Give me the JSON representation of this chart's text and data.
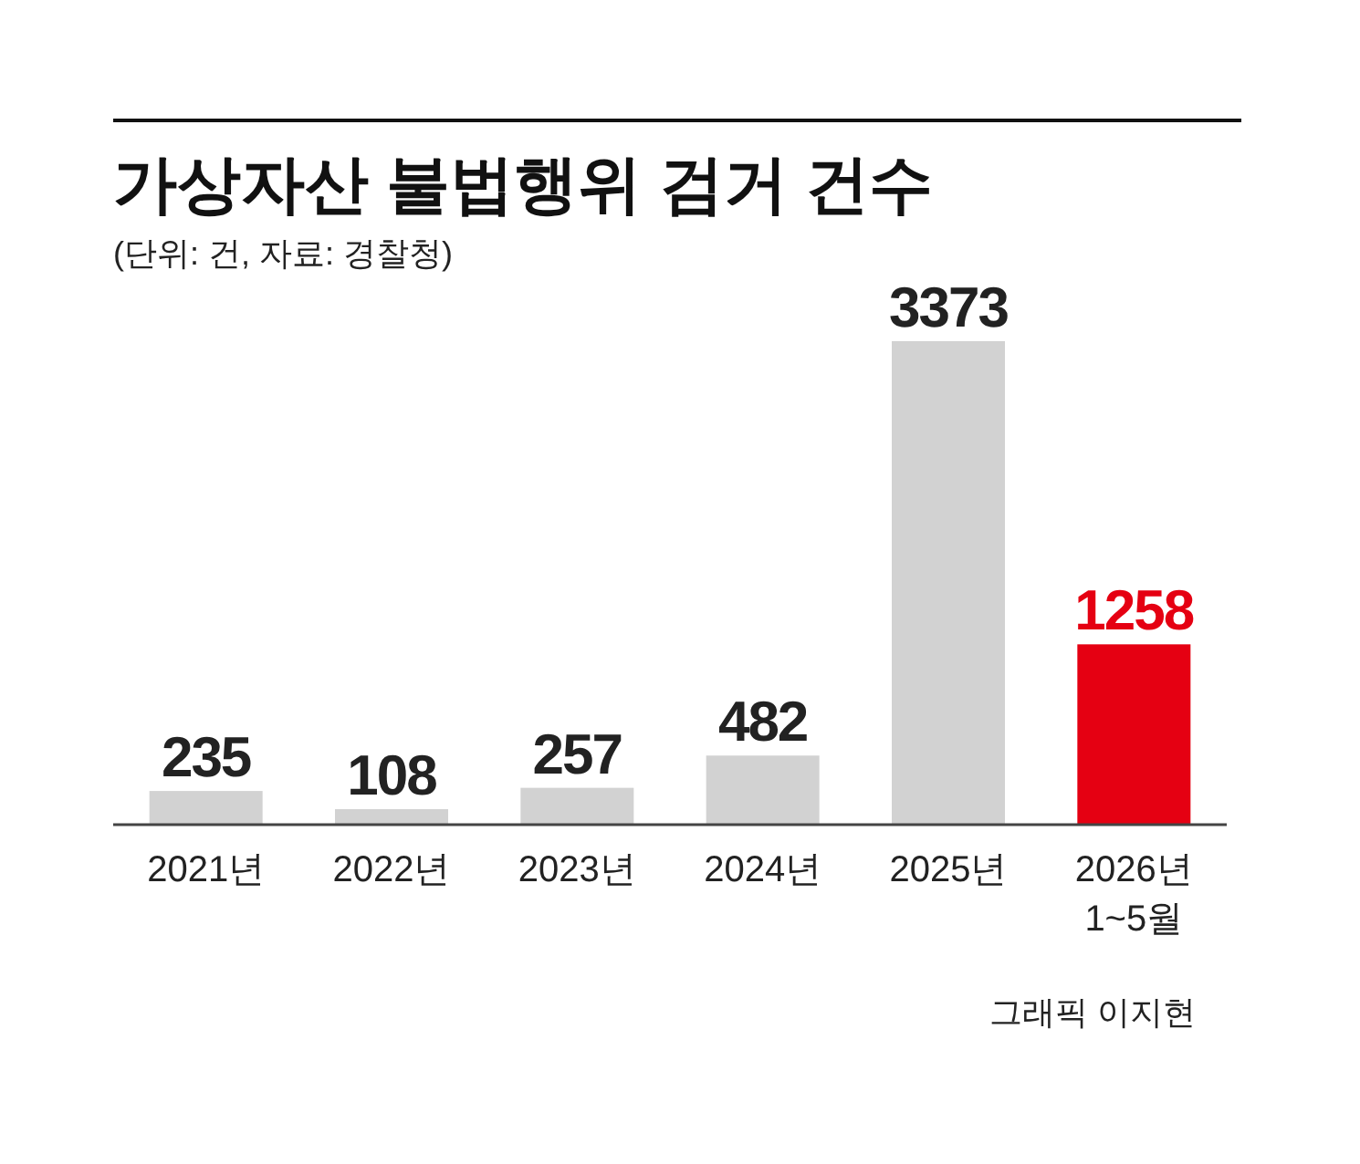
{
  "chart_data": {
    "type": "bar",
    "title": "가상자산 불법행위 검거 건수",
    "subtitle": "(단위: 건, 자료: 경찰청)",
    "categories": [
      "2021년",
      "2022년",
      "2023년",
      "2024년",
      "2025년",
      "2026년\n1~5월"
    ],
    "values": [
      235,
      108,
      257,
      482,
      3373,
      1258
    ],
    "colors": [
      "#d2d2d2",
      "#d2d2d2",
      "#d2d2d2",
      "#d2d2d2",
      "#d2d2d2",
      "#e50012"
    ],
    "data_labels": true,
    "annotations": [
      "그래픽 이지현"
    ]
  }
}
